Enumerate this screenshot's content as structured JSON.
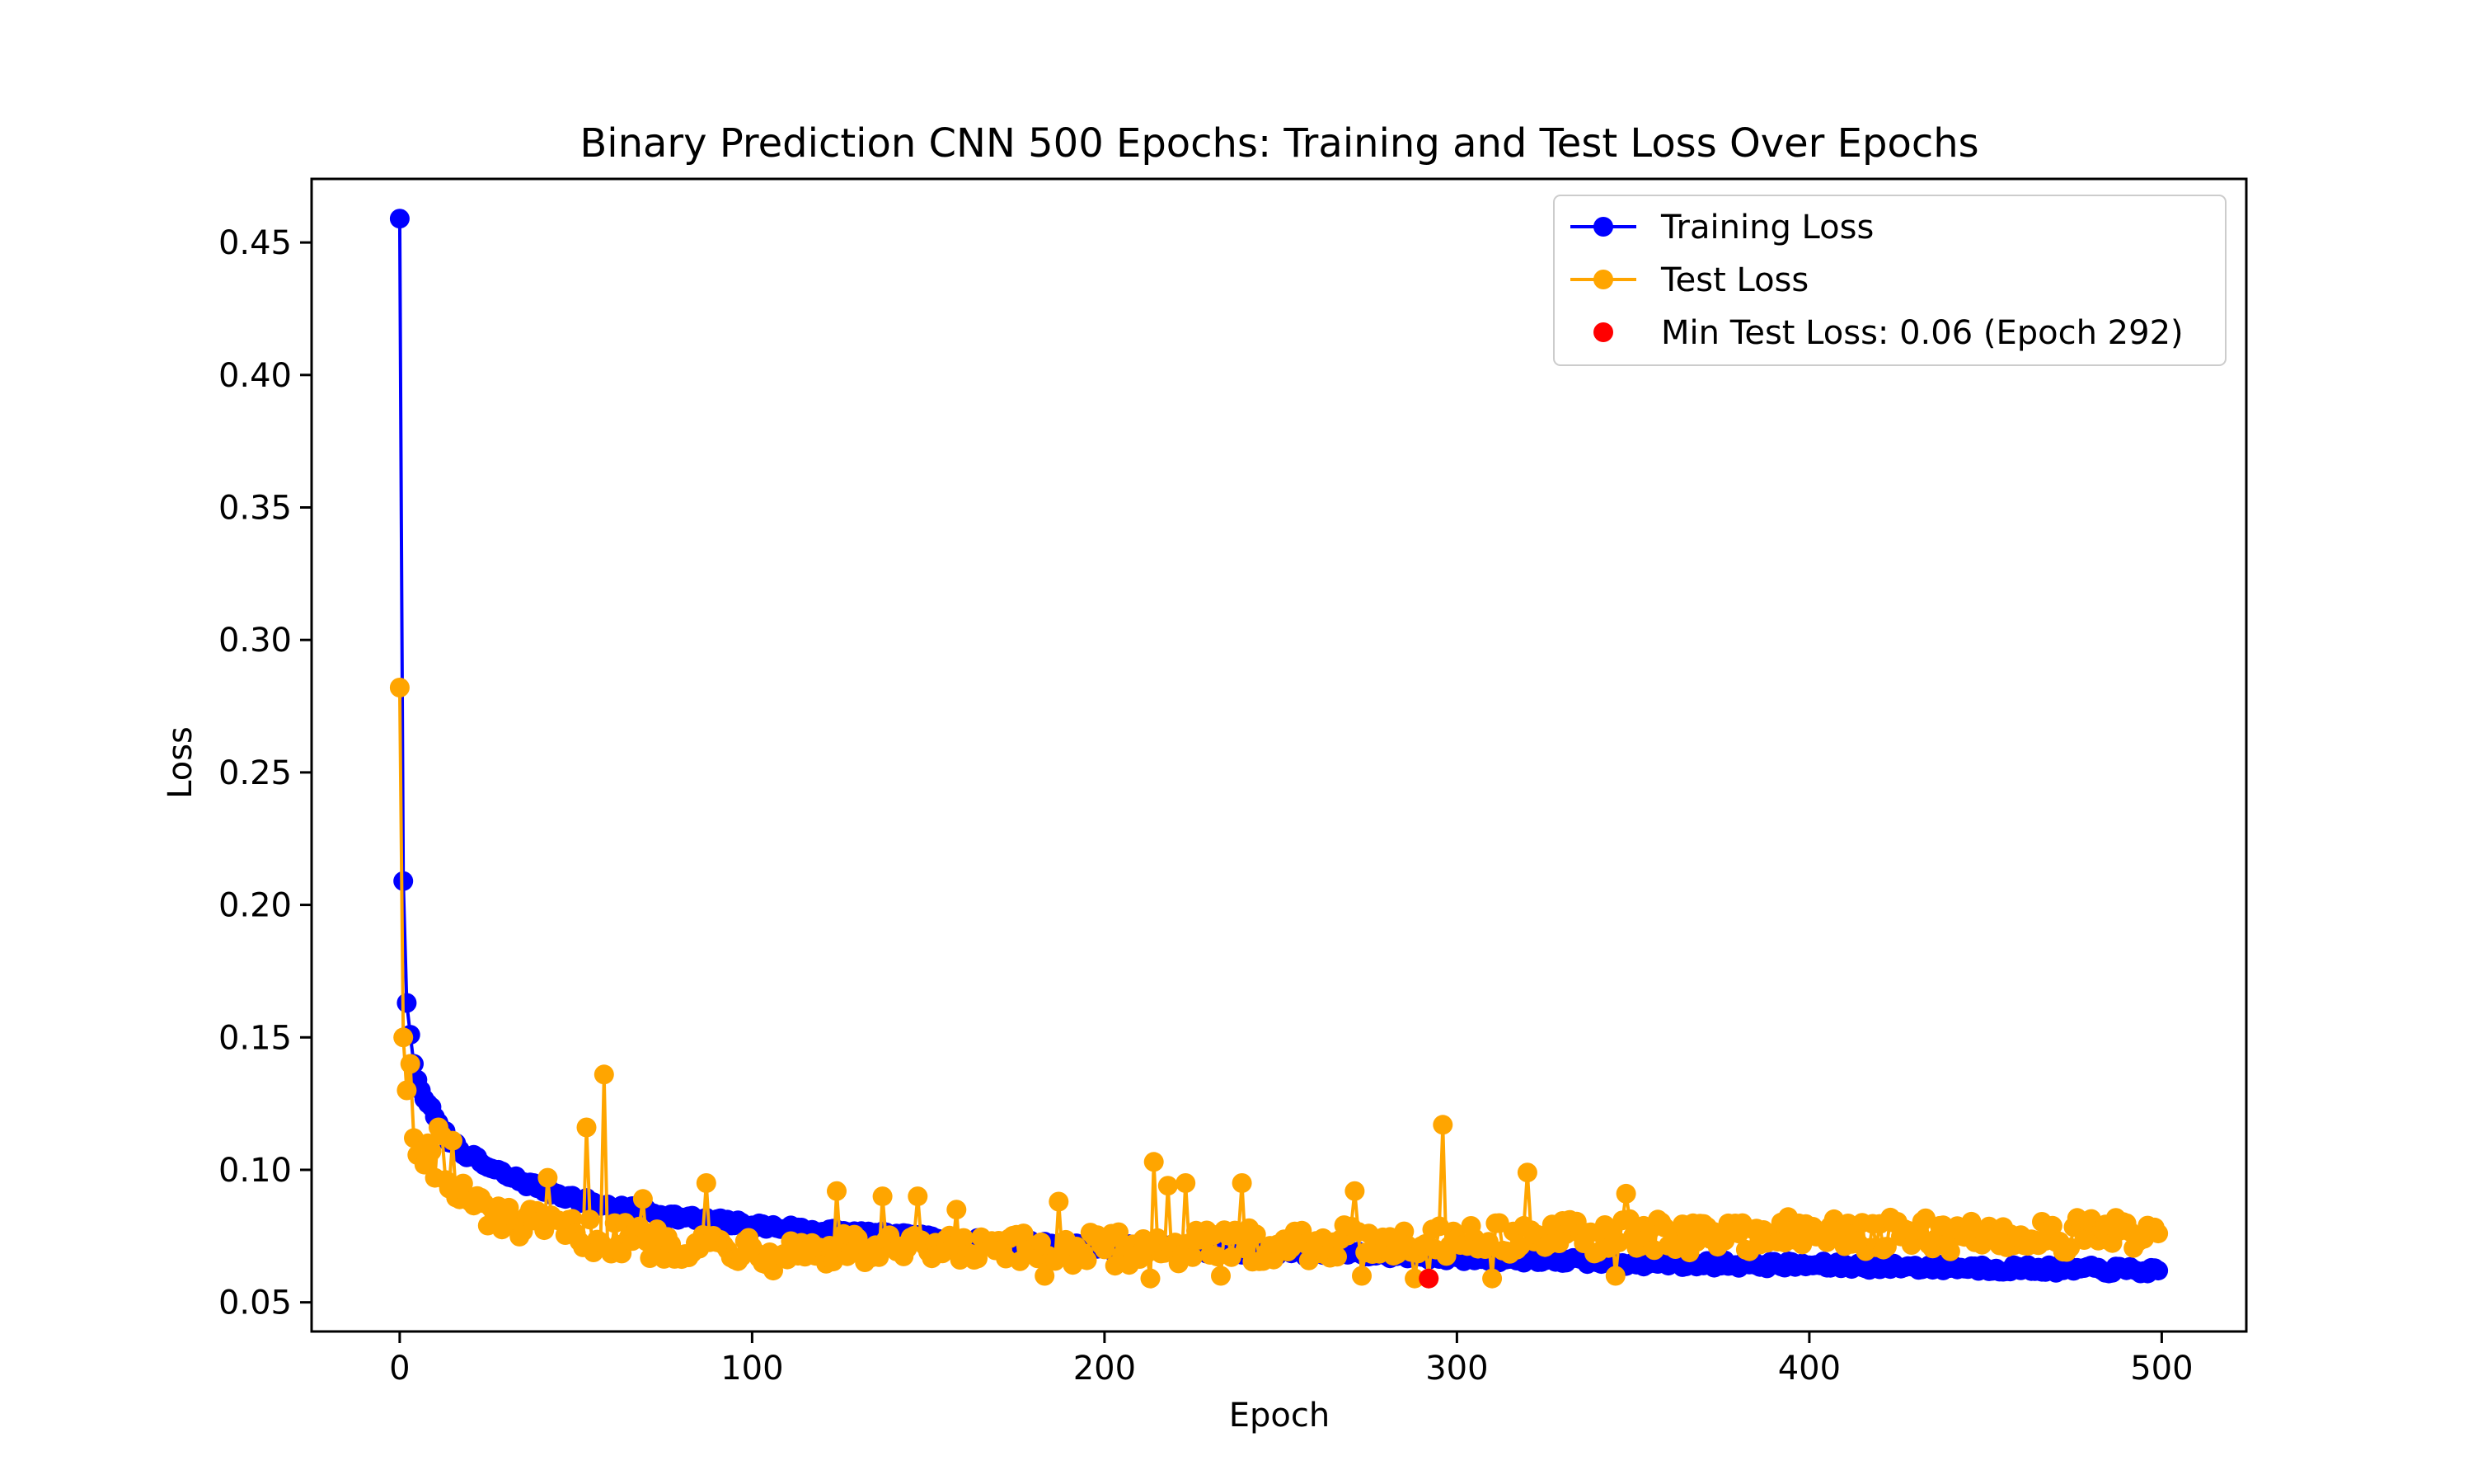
{
  "chart_data": {
    "type": "line",
    "title": "Binary Prediction CNN 500 Epochs: Training and Test Loss Over Epochs",
    "xlabel": "Epoch",
    "ylabel": "Loss",
    "xlim": [
      -25,
      524
    ],
    "ylim": [
      0.039,
      0.474
    ],
    "x_ticks": [
      0,
      100,
      200,
      300,
      400,
      500
    ],
    "x_tick_labels": [
      "0",
      "100",
      "200",
      "300",
      "400",
      "500"
    ],
    "y_ticks": [
      0.05,
      0.1,
      0.15,
      0.2,
      0.25,
      0.3,
      0.35,
      0.4,
      0.45
    ],
    "y_tick_labels": [
      "0.05",
      "0.10",
      "0.15",
      "0.20",
      "0.25",
      "0.30",
      "0.35",
      "0.40",
      "0.45"
    ],
    "grid": false,
    "legend_position": "top-right",
    "epochs": 500,
    "series": [
      {
        "name": "Training Loss",
        "color": "#0000ff",
        "marker": "circle",
        "anchors": [
          [
            0,
            0.459
          ],
          [
            1,
            0.209
          ],
          [
            2,
            0.163
          ],
          [
            3,
            0.151
          ],
          [
            4,
            0.14
          ],
          [
            5,
            0.134
          ],
          [
            6,
            0.13
          ],
          [
            8,
            0.125
          ],
          [
            10,
            0.12
          ],
          [
            12,
            0.115
          ],
          [
            15,
            0.11
          ],
          [
            20,
            0.105
          ],
          [
            25,
            0.101
          ],
          [
            30,
            0.098
          ],
          [
            40,
            0.093
          ],
          [
            50,
            0.089
          ],
          [
            60,
            0.086
          ],
          [
            80,
            0.082
          ],
          [
            100,
            0.079
          ],
          [
            130,
            0.076
          ],
          [
            160,
            0.073
          ],
          [
            200,
            0.071
          ],
          [
            250,
            0.069
          ],
          [
            300,
            0.067
          ],
          [
            350,
            0.065
          ],
          [
            400,
            0.064
          ],
          [
            450,
            0.063
          ],
          [
            499,
            0.062
          ]
        ],
        "noise": 0.0015
      },
      {
        "name": "Test Loss",
        "color": "#ffa500",
        "marker": "circle",
        "anchors": [
          [
            0,
            0.282
          ],
          [
            1,
            0.15
          ],
          [
            2,
            0.13
          ],
          [
            3,
            0.14
          ],
          [
            4,
            0.112
          ],
          [
            6,
            0.105
          ],
          [
            8,
            0.11
          ],
          [
            10,
            0.097
          ],
          [
            14,
            0.093
          ],
          [
            20,
            0.088
          ],
          [
            30,
            0.08
          ],
          [
            50,
            0.076
          ],
          [
            70,
            0.073
          ],
          [
            100,
            0.071
          ],
          [
            150,
            0.069
          ],
          [
            200,
            0.07
          ],
          [
            250,
            0.072
          ],
          [
            300,
            0.074
          ],
          [
            350,
            0.075
          ],
          [
            400,
            0.076
          ],
          [
            450,
            0.075
          ],
          [
            499,
            0.076
          ]
        ],
        "noise": 0.0065,
        "spikes": [
          [
            11,
            0.116
          ],
          [
            12,
            0.113
          ],
          [
            15,
            0.111
          ],
          [
            42,
            0.097
          ],
          [
            50,
            0.097
          ],
          [
            53,
            0.116
          ],
          [
            58,
            0.136
          ],
          [
            69,
            0.089
          ],
          [
            87,
            0.095
          ],
          [
            106,
            0.091
          ],
          [
            124,
            0.092
          ],
          [
            137,
            0.09
          ],
          [
            147,
            0.09
          ],
          [
            158,
            0.085
          ],
          [
            187,
            0.088
          ],
          [
            214,
            0.103
          ],
          [
            218,
            0.094
          ],
          [
            223,
            0.095
          ],
          [
            239,
            0.095
          ],
          [
            271,
            0.092
          ],
          [
            296,
            0.117
          ],
          [
            320,
            0.099
          ],
          [
            348,
            0.091
          ],
          [
            106,
            0.062
          ],
          [
            183,
            0.06
          ],
          [
            213,
            0.059
          ],
          [
            233,
            0.06
          ],
          [
            273,
            0.06
          ],
          [
            288,
            0.059
          ],
          [
            292,
            0.059
          ],
          [
            310,
            0.059
          ],
          [
            345,
            0.06
          ]
        ]
      }
    ],
    "min_marker": {
      "label": "Min Test Loss: 0.06 (Epoch 292)",
      "color": "#ff0000",
      "x": 292,
      "y": 0.059
    }
  }
}
